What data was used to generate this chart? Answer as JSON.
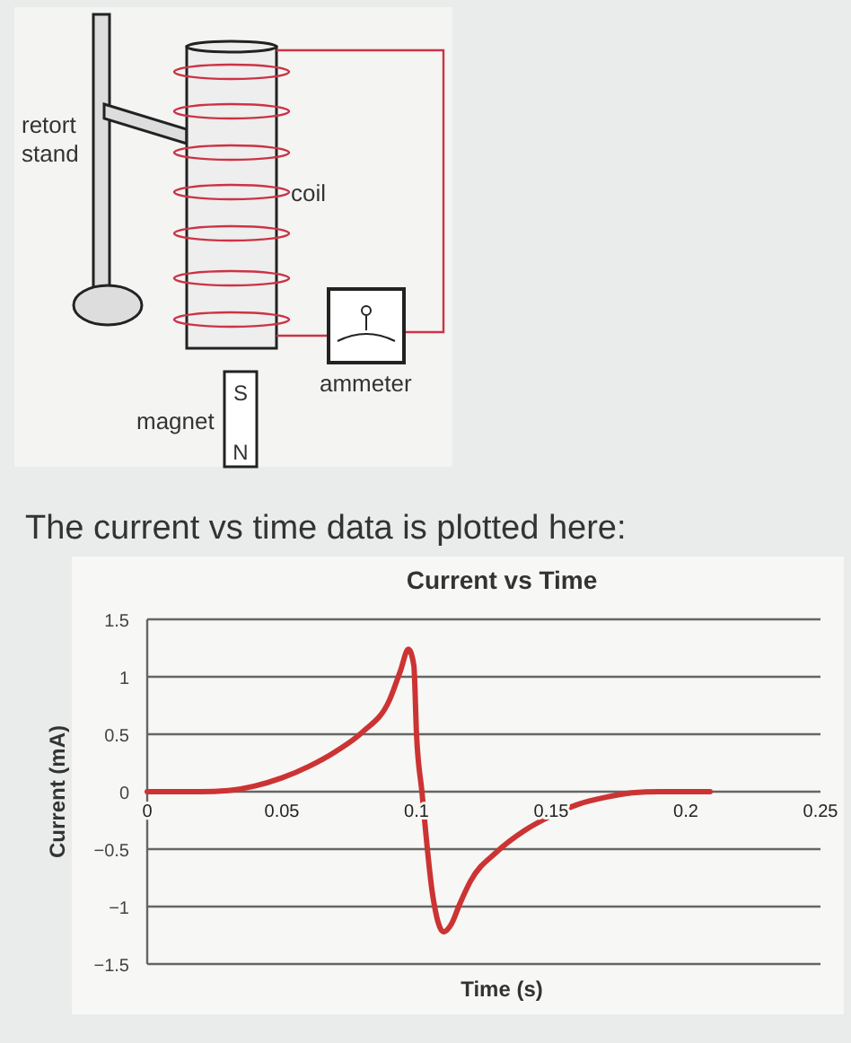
{
  "chart_data": {
    "type": "line",
    "title": "Current vs Time",
    "xlabel": "Time (s)",
    "ylabel": "Current (mA)",
    "annotations": [
      "retort stand",
      "coil",
      "ammeter",
      "magnet",
      "S",
      "N",
      "The current vs time data is plotted here:"
    ],
    "xlim": [
      0,
      0.25
    ],
    "xticks": [
      0,
      0.05,
      0.1,
      0.15,
      0.2,
      0.25
    ],
    "ylim": [
      -1.5,
      1.5
    ],
    "yticks": [
      -1.5,
      -1,
      -0.5,
      0,
      0.5,
      1,
      1.5
    ],
    "grid": "y",
    "marker": "none",
    "line_style": "solid",
    "series": [
      {
        "color": "#cc3333",
        "x": [
          0,
          0.02,
          0.03,
          0.04,
          0.05,
          0.06,
          0.07,
          0.08,
          0.09,
          0.094,
          0.097,
          0.099,
          0.1,
          0.102,
          0.106,
          0.11,
          0.113,
          0.116,
          0.12,
          0.13,
          0.14,
          0.15,
          0.16,
          0.17,
          0.18,
          0.19,
          0.209
        ],
        "values": [
          0,
          0,
          0.01,
          0.05,
          0.12,
          0.22,
          0.35,
          0.52,
          0.8,
          1.05,
          1.24,
          1.1,
          0.5,
          0,
          -0.9,
          -1.22,
          -1.15,
          -0.98,
          -0.78,
          -0.52,
          -0.34,
          -0.21,
          -0.11,
          -0.05,
          -0.01,
          0,
          0
        ]
      }
    ]
  }
}
